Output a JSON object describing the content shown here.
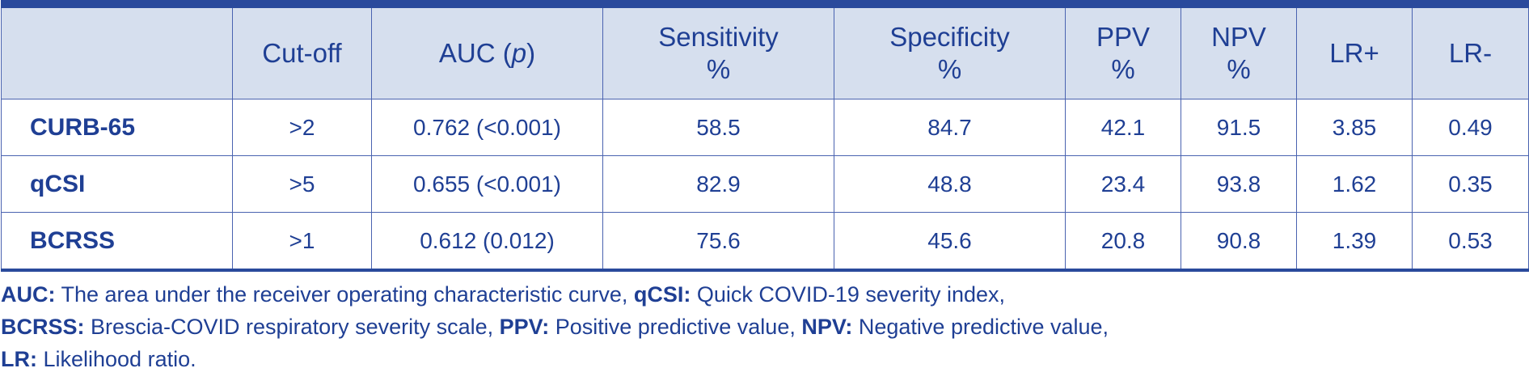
{
  "table": {
    "headers": [
      {
        "key": "blank",
        "lines": [
          ""
        ]
      },
      {
        "key": "cutoff",
        "lines": [
          "Cut-off"
        ]
      },
      {
        "key": "auc",
        "prefix": "AUC (",
        "italic": "p",
        "suffix": ")"
      },
      {
        "key": "sensitivity",
        "lines": [
          "Sensitivity",
          "%"
        ]
      },
      {
        "key": "specificity",
        "lines": [
          "Specificity",
          "%"
        ]
      },
      {
        "key": "ppv",
        "lines": [
          "PPV",
          "%"
        ]
      },
      {
        "key": "npv",
        "lines": [
          "NPV",
          "%"
        ]
      },
      {
        "key": "lrplus",
        "lines": [
          "LR+"
        ]
      },
      {
        "key": "lrminus",
        "lines": [
          "LR-"
        ]
      }
    ],
    "rows": [
      {
        "label": "CURB-65",
        "cells": [
          ">2",
          "0.762 (<0.001)",
          "58.5",
          "84.7",
          "42.1",
          "91.5",
          "3.85",
          "0.49"
        ]
      },
      {
        "label": "qCSI",
        "cells": [
          ">5",
          "0.655 (<0.001)",
          "82.9",
          "48.8",
          "23.4",
          "93.8",
          "1.62",
          "0.35"
        ]
      },
      {
        "label": "BCRSS",
        "cells": [
          ">1",
          "0.612 (0.012)",
          "75.6",
          "45.6",
          "20.8",
          "90.8",
          "1.39",
          "0.53"
        ]
      }
    ]
  },
  "footnote": {
    "parts": [
      {
        "term": "AUC:",
        "text": " The area under the receiver operating characteristic curve, "
      },
      {
        "term": "qCSI:",
        "text": " Quick COVID-19 severity index, "
      },
      {
        "term": "BCRSS:",
        "text": " Brescia-COVID respiratory severity scale, "
      },
      {
        "term": "PPV:",
        "text": " Positive predictive value, "
      },
      {
        "term": "NPV:",
        "text": " Negative predictive value, "
      },
      {
        "term": "LR:",
        "text": " Likelihood ratio."
      }
    ]
  },
  "colors": {
    "text": "#1f3f94",
    "header_bg": "#d6dfee",
    "rule": "#2a4a9c"
  }
}
